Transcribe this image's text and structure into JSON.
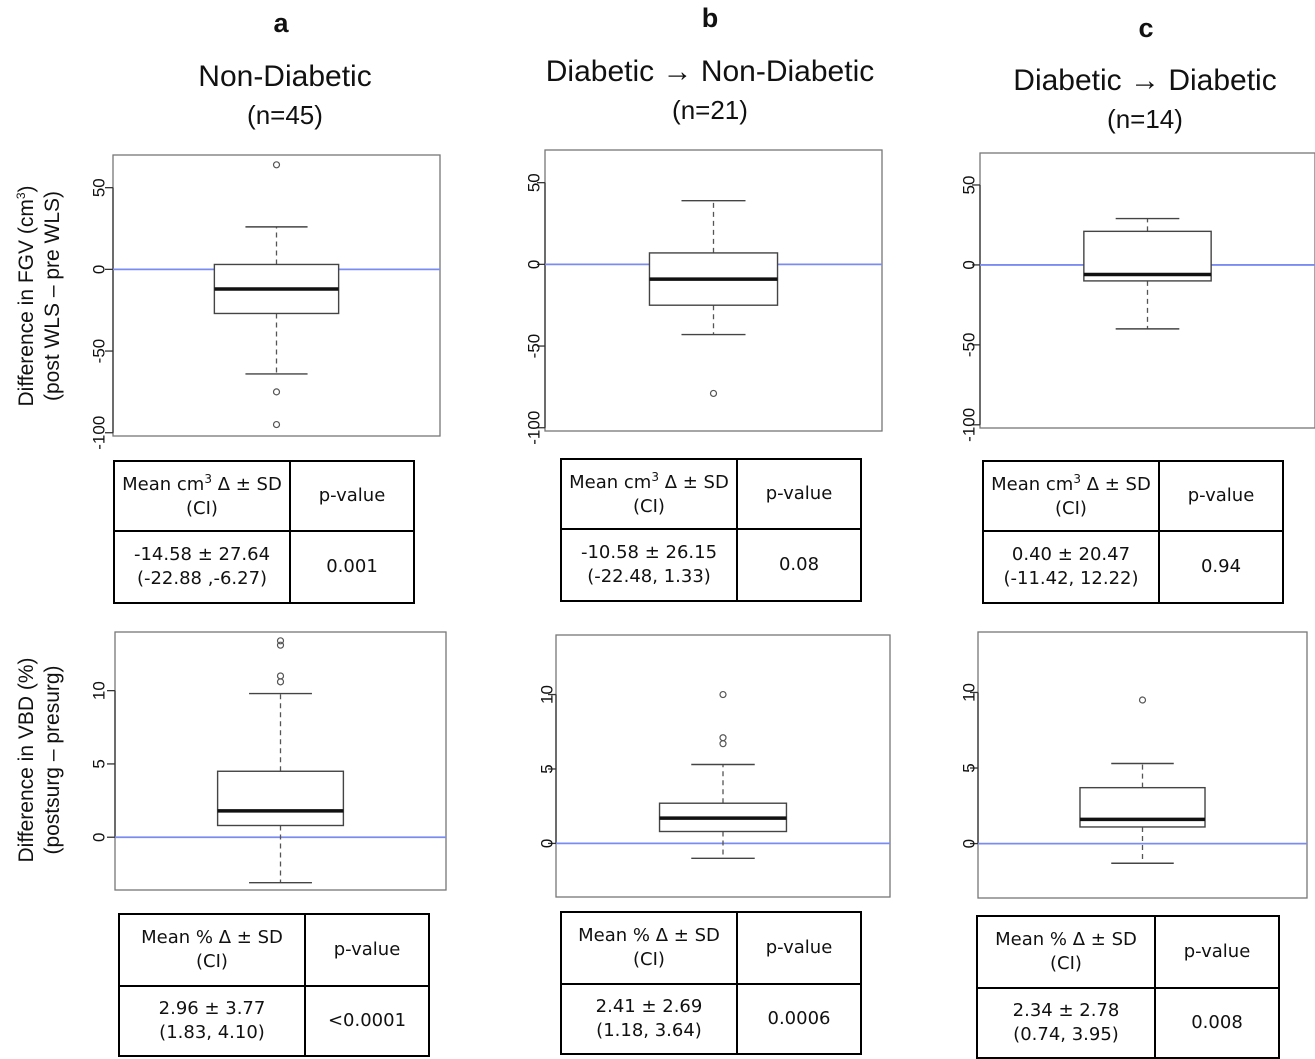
{
  "columns": [
    {
      "letter": "a",
      "title": "Non-Diabetic",
      "n": "(n=45)"
    },
    {
      "letter": "b",
      "title": "Diabetic → Non-Diabetic",
      "n": "(n=21)"
    },
    {
      "letter": "c",
      "title": "Diabetic → Diabetic",
      "n": "(n=14)"
    }
  ],
  "row_labels": {
    "fgv": {
      "line1": "Difference in FGV (cm",
      "sup": "3",
      "line1_end": ")",
      "line2": "(post WLS – pre WLS)"
    },
    "vbd": {
      "line1": "Difference in VBD (%)",
      "line2": "(postsurg – presurg)"
    }
  },
  "tables": {
    "fgv": {
      "header_mean_a": "Mean cm",
      "header_mean_sup": "3",
      "header_mean_b": " Δ ± SD",
      "header_ci": "(CI)",
      "header_p": "p-value",
      "rows": [
        {
          "mean": "-14.58 ± 27.64",
          "ci": "(-22.88 ,-6.27)",
          "p": "0.001"
        },
        {
          "mean": "-10.58 ± 26.15",
          "ci": "(-22.48, 1.33)",
          "p": "0.08"
        },
        {
          "mean": "0.40 ± 20.47",
          "ci": "(-11.42, 12.22)",
          "p": "0.94"
        }
      ]
    },
    "vbd": {
      "header_mean": "Mean % Δ ± SD",
      "header_ci": "(CI)",
      "header_p": "p-value",
      "rows": [
        {
          "mean": "2.96 ± 3.77",
          "ci": "(1.83, 4.10)",
          "p": "<0.0001"
        },
        {
          "mean": "2.41 ± 2.69",
          "ci": "(1.18, 3.64)",
          "p": "0.0006"
        },
        {
          "mean": "2.34 ± 2.78",
          "ci": "(0.74, 3.95)",
          "p": "0.008"
        }
      ]
    }
  },
  "chart_data": [
    {
      "type": "box",
      "panel": "a-FGV",
      "ylim": [
        -102,
        70
      ],
      "yticks": [
        -100,
        -50,
        0,
        50
      ],
      "ytick_labels": [
        "-100",
        "-50",
        "0",
        "50"
      ],
      "reference_line": 0,
      "reference_color": "#7b8cf0",
      "box": {
        "whisker_low": -64,
        "q1": -27,
        "median": -12,
        "q3": 3,
        "whisker_high": 26,
        "outliers": [
          64,
          -75,
          -95
        ]
      }
    },
    {
      "type": "box",
      "panel": "b-FGV",
      "ylim": [
        -102,
        70
      ],
      "yticks": [
        -100,
        -50,
        0,
        50
      ],
      "ytick_labels": [
        "-100",
        "-50",
        "0",
        "50"
      ],
      "reference_line": 0,
      "reference_color": "#7b8cf0",
      "box": {
        "whisker_low": -43,
        "q1": -25,
        "median": -9,
        "q3": 7,
        "whisker_high": 39,
        "outliers": [
          -79
        ]
      }
    },
    {
      "type": "box",
      "panel": "c-FGV",
      "ylim": [
        -102,
        70
      ],
      "yticks": [
        -100,
        -50,
        0,
        50
      ],
      "ytick_labels": [
        "-100",
        "-50",
        "0",
        "50"
      ],
      "reference_line": 0,
      "reference_color": "#7b8cf0",
      "box": {
        "whisker_low": -40,
        "q1": -10,
        "median": -6,
        "q3": 21,
        "whisker_high": 29,
        "outliers": []
      }
    },
    {
      "type": "box",
      "panel": "a-VBD",
      "ylim": [
        -3.6,
        14
      ],
      "yticks": [
        0,
        5,
        10
      ],
      "ytick_labels": [
        "0",
        "5",
        "10"
      ],
      "reference_line": 0,
      "reference_color": "#7b8cf0",
      "box": {
        "whisker_low": -3.1,
        "q1": 0.8,
        "median": 1.8,
        "q3": 4.5,
        "whisker_high": 9.8,
        "outliers": [
          13.4,
          13.1,
          11.0,
          10.6
        ]
      }
    },
    {
      "type": "box",
      "panel": "b-VBD",
      "ylim": [
        -3.6,
        14
      ],
      "yticks": [
        0,
        5,
        10
      ],
      "ytick_labels": [
        "0",
        "5",
        "10"
      ],
      "reference_line": 0,
      "reference_color": "#7b8cf0",
      "box": {
        "whisker_low": -1.0,
        "q1": 0.8,
        "median": 1.7,
        "q3": 2.7,
        "whisker_high": 5.3,
        "outliers": [
          10.0,
          7.1,
          6.7
        ]
      }
    },
    {
      "type": "box",
      "panel": "c-VBD",
      "ylim": [
        -3.6,
        14
      ],
      "yticks": [
        0,
        5,
        10
      ],
      "ytick_labels": [
        "0",
        "5",
        "10"
      ],
      "reference_line": 0,
      "reference_color": "#7b8cf0",
      "box": {
        "whisker_low": -1.3,
        "q1": 1.1,
        "median": 1.6,
        "q3": 3.7,
        "whisker_high": 5.3,
        "outliers": [
          9.5
        ]
      }
    }
  ]
}
